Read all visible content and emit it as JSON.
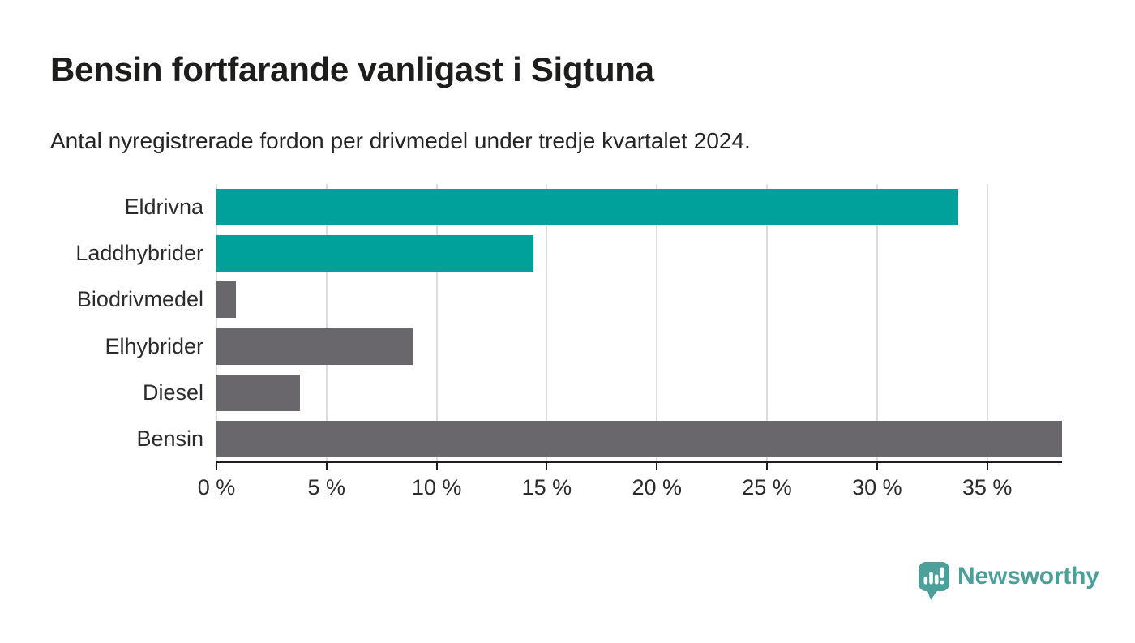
{
  "header": {
    "title": "Bensin fortfarande vanligast i Sigtuna",
    "subtitle": "Antal nyregistrerade fordon per drivmedel under tredje kvartalet 2024."
  },
  "chart_data": {
    "type": "bar",
    "orientation": "horizontal",
    "title": "Bensin fortfarande vanligast i Sigtuna",
    "subtitle": "Antal nyregistrerade fordon per drivmedel under tredje kvartalet 2024.",
    "categories": [
      "Eldrivna",
      "Laddhybrider",
      "Biodrivmedel",
      "Elhybrider",
      "Diesel",
      "Bensin"
    ],
    "values": [
      33.7,
      14.4,
      0.9,
      8.9,
      3.8,
      38.4
    ],
    "unit": "%",
    "bar_colors": [
      "#00A19A",
      "#00A19A",
      "#6A676C",
      "#6A676C",
      "#6A676C",
      "#6A676C"
    ],
    "xlabel": "",
    "ylabel": "",
    "x_axis": {
      "min": 0,
      "max": 38.4,
      "tick_values": [
        0,
        5,
        10,
        15,
        20,
        25,
        30,
        35
      ],
      "tick_labels": [
        "0 %",
        "5 %",
        "10 %",
        "15 %",
        "20 %",
        "25 %",
        "30 %",
        "35 %"
      ]
    },
    "grid": "vertical-gridlines",
    "legend": "none"
  },
  "footer": {
    "brand": "Newsworthy"
  },
  "colors": {
    "highlight_teal": "#00A19A",
    "neutral_gray": "#6A676C",
    "gridline": "#DCDCDC",
    "axis": "#1E1E1E",
    "text": "#2B2B2B",
    "title_text": "#1D1D1B",
    "brand_teal": "#4BA09A",
    "background": "#FFFFFF"
  },
  "icons": {
    "logo": "newsworthy-speech-bubble-bar-chart-icon"
  }
}
